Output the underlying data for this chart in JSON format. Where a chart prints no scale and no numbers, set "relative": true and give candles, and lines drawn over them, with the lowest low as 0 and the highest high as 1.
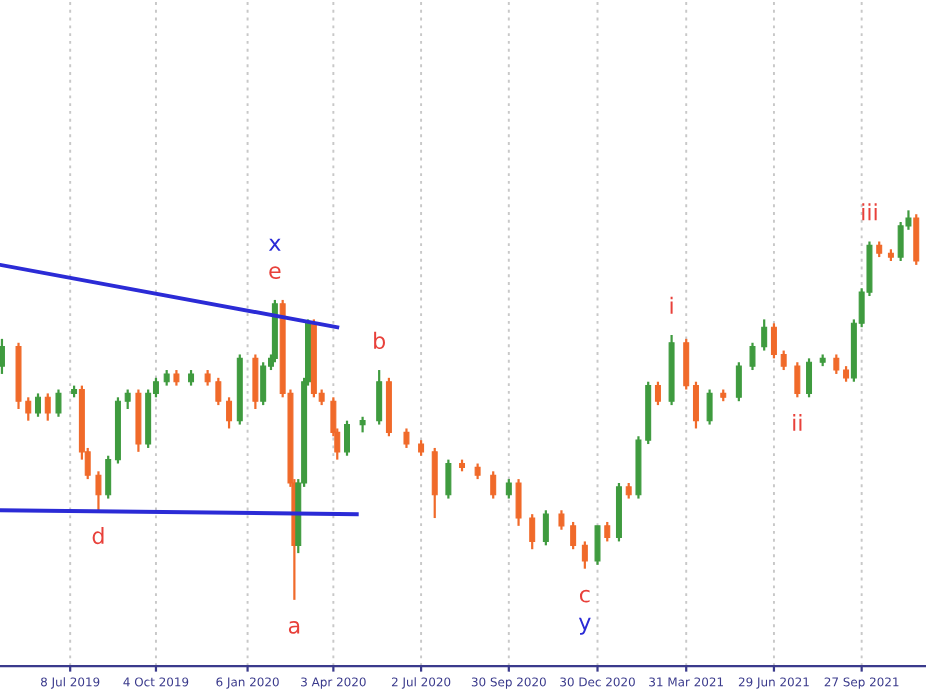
{
  "chart_data": {
    "type": "candlestick",
    "relative": true,
    "grid": true,
    "colors": [
      "#3f9b3f",
      "#f06a2a",
      "#f06a2a",
      "#3f9b3f",
      "#f06a2a",
      "#3f9b3f",
      "#3f9b3f",
      "#f06a2a",
      "#f06a2a",
      "#f06a2a",
      "#3f9b3f",
      "#3f9b3f",
      "#3f9b3f",
      "#f06a2a",
      "#3f9b3f",
      "#3f9b3f",
      "#3f9b3f",
      "#f06a2a",
      "#3f9b3f",
      "#f06a2a",
      "#f06a2a",
      "#f06a2a",
      "#3f9b3f",
      "#f06a2a",
      "#3f9b3f",
      "#3f9b3f",
      "#3f9b3f",
      "#f06a2a",
      "#f06a2a",
      "#f06a2a",
      "#3f9b3f",
      "#3f9b3f",
      "#3f9b3f",
      "#f06a2a",
      "#f06a2a",
      "#f06a2a",
      "#f06a2a",
      "#3f9b3f",
      "#3f9b3f",
      "#3f9b3f",
      "#f06a2a",
      "#f06a2a",
      "#f06a2a",
      "#f06a2a",
      "#3f9b3f",
      "#f06a2a",
      "#f06a2a",
      "#f06a2a",
      "#3f9b3f",
      "#f06a2a",
      "#f06a2a",
      "#3f9b3f",
      "#f06a2a",
      "#f06a2a",
      "#f06a2a",
      "#3f9b3f",
      "#f06a2a",
      "#3f9b3f",
      "#f06a2a",
      "#3f9b3f",
      "#3f9b3f",
      "#f06a2a",
      "#3f9b3f",
      "#f06a2a",
      "#f06a2a",
      "#3f9b3f",
      "#f06a2a",
      "#3f9b3f",
      "#3f9b3f",
      "#3f9b3f",
      "#f06a2a",
      "#f06a2a",
      "#f06a2a",
      "#3f9b3f",
      "#3f9b3f",
      "#f06a2a",
      "#f06a2a",
      "#3f9b3f",
      "#3f9b3f",
      "#3f9b3f",
      "#f06a2a",
      "#f06a2a",
      "#3f9b3f",
      "#3f9b3f",
      "#f06a2a"
    ],
    "x": [
      "2019-04-29",
      "2019-05-16",
      "2019-05-26",
      "2019-06-05",
      "2019-06-15",
      "2019-06-26",
      "2019-07-12",
      "2019-07-20",
      "2019-07-26",
      "2019-08-06",
      "2019-08-16",
      "2019-08-26",
      "2019-09-05",
      "2019-09-16",
      "2019-09-26",
      "2019-10-04",
      "2019-10-15",
      "2019-10-25",
      "2019-11-09",
      "2019-11-26",
      "2019-12-07",
      "2019-12-18",
      "2019-12-29",
      "2020-01-14",
      "2020-01-22",
      "2020-01-30",
      "2020-02-03",
      "2020-02-11",
      "2020-02-19",
      "2020-02-23",
      "2020-02-27",
      "2020-03-04",
      "2020-03-08",
      "2020-03-14",
      "2020-03-22",
      "2020-04-03",
      "2020-04-07",
      "2020-04-17",
      "2020-05-03",
      "2020-05-20",
      "2020-05-30",
      "2020-06-17",
      "2020-07-02",
      "2020-07-16",
      "2020-07-30",
      "2020-08-13",
      "2020-08-29",
      "2020-09-14",
      "2020-09-30",
      "2020-10-10",
      "2020-10-24",
      "2020-11-07",
      "2020-11-23",
      "2020-12-05",
      "2020-12-17",
      "2020-12-30",
      "2021-01-09",
      "2021-01-21",
      "2021-01-31",
      "2021-02-10",
      "2021-02-20",
      "2021-03-02",
      "2021-03-16",
      "2021-03-31",
      "2021-04-10",
      "2021-04-24",
      "2021-05-08",
      "2021-05-24",
      "2021-06-07",
      "2021-06-19",
      "2021-06-29",
      "2021-07-09",
      "2021-07-23",
      "2021-08-04",
      "2021-08-18",
      "2021-09-01",
      "2021-09-11",
      "2021-09-19",
      "2021-09-27",
      "2021-10-05",
      "2021-10-15",
      "2021-10-27",
      "2021-11-06",
      "2021-11-14",
      "2021-11-22"
    ],
    "ohlc": [
      [
        0.6,
        0.67,
        0.58,
        0.65
      ],
      [
        0.65,
        0.66,
        0.49,
        0.51
      ],
      [
        0.51,
        0.52,
        0.46,
        0.48
      ],
      [
        0.48,
        0.53,
        0.47,
        0.52
      ],
      [
        0.52,
        0.53,
        0.46,
        0.48
      ],
      [
        0.48,
        0.54,
        0.47,
        0.53
      ],
      [
        0.53,
        0.55,
        0.52,
        0.54
      ],
      [
        0.54,
        0.55,
        0.36,
        0.38
      ],
      [
        0.38,
        0.39,
        0.31,
        0.32
      ],
      [
        0.32,
        0.33,
        0.23,
        0.27
      ],
      [
        0.27,
        0.37,
        0.26,
        0.36
      ],
      [
        0.36,
        0.52,
        0.35,
        0.51
      ],
      [
        0.51,
        0.54,
        0.49,
        0.53
      ],
      [
        0.53,
        0.54,
        0.38,
        0.4
      ],
      [
        0.4,
        0.54,
        0.39,
        0.53
      ],
      [
        0.53,
        0.57,
        0.52,
        0.56
      ],
      [
        0.56,
        0.59,
        0.55,
        0.58
      ],
      [
        0.58,
        0.59,
        0.55,
        0.56
      ],
      [
        0.56,
        0.59,
        0.55,
        0.58
      ],
      [
        0.58,
        0.59,
        0.55,
        0.56
      ],
      [
        0.56,
        0.57,
        0.5,
        0.51
      ],
      [
        0.51,
        0.52,
        0.44,
        0.46
      ],
      [
        0.46,
        0.63,
        0.45,
        0.62
      ],
      [
        0.62,
        0.63,
        0.49,
        0.51
      ],
      [
        0.51,
        0.61,
        0.5,
        0.6
      ],
      [
        0.6,
        0.63,
        0.59,
        0.62
      ],
      [
        0.62,
        0.77,
        0.61,
        0.76
      ],
      [
        0.76,
        0.77,
        0.52,
        0.53
      ],
      [
        0.53,
        0.54,
        0.29,
        0.3
      ],
      [
        0.3,
        0.31,
        0,
        0.14
      ],
      [
        0.14,
        0.31,
        0.12,
        0.3
      ],
      [
        0.3,
        0.57,
        0.29,
        0.56
      ],
      [
        0.56,
        0.72,
        0.55,
        0.71
      ],
      [
        0.71,
        0.72,
        0.52,
        0.53
      ],
      [
        0.53,
        0.54,
        0.5,
        0.51
      ],
      [
        0.51,
        0.52,
        0.42,
        0.43
      ],
      [
        0.43,
        0.44,
        0.36,
        0.38
      ],
      [
        0.38,
        0.46,
        0.37,
        0.45
      ],
      [
        0.45,
        0.47,
        0.43,
        0.46
      ],
      [
        0.46,
        0.59,
        0.45,
        0.56
      ],
      [
        0.56,
        0.57,
        0.42,
        0.43
      ],
      [
        0.43,
        0.44,
        0.39,
        0.4
      ],
      [
        0.4,
        0.41,
        0.37,
        0.38
      ],
      [
        0.38,
        0.39,
        0.21,
        0.27
      ],
      [
        0.27,
        0.36,
        0.26,
        0.35
      ],
      [
        0.35,
        0.36,
        0.33,
        0.34
      ],
      [
        0.34,
        0.35,
        0.31,
        0.32
      ],
      [
        0.32,
        0.33,
        0.26,
        0.27
      ],
      [
        0.27,
        0.31,
        0.26,
        0.3
      ],
      [
        0.3,
        0.31,
        0.19,
        0.21
      ],
      [
        0.21,
        0.22,
        0.13,
        0.15
      ],
      [
        0.15,
        0.23,
        0.14,
        0.22
      ],
      [
        0.22,
        0.23,
        0.18,
        0.19
      ],
      [
        0.19,
        0.2,
        0.13,
        0.14
      ],
      [
        0.14,
        0.15,
        0.08,
        0.1
      ],
      [
        0.1,
        0.19,
        0.09,
        0.19
      ],
      [
        0.19,
        0.2,
        0.15,
        0.16
      ],
      [
        0.16,
        0.3,
        0.15,
        0.29
      ],
      [
        0.29,
        0.3,
        0.26,
        0.27
      ],
      [
        0.27,
        0.42,
        0.26,
        0.41
      ],
      [
        0.41,
        0.56,
        0.4,
        0.55
      ],
      [
        0.55,
        0.56,
        0.5,
        0.51
      ],
      [
        0.51,
        0.68,
        0.5,
        0.66
      ],
      [
        0.66,
        0.67,
        0.54,
        0.55
      ],
      [
        0.55,
        0.56,
        0.44,
        0.46
      ],
      [
        0.46,
        0.54,
        0.45,
        0.53
      ],
      [
        0.53,
        0.54,
        0.51,
        0.52
      ],
      [
        0.52,
        0.61,
        0.51,
        0.6
      ],
      [
        0.6,
        0.66,
        0.59,
        0.65
      ],
      [
        0.65,
        0.72,
        0.64,
        0.7
      ],
      [
        0.7,
        0.71,
        0.62,
        0.63
      ],
      [
        0.63,
        0.64,
        0.59,
        0.6
      ],
      [
        0.6,
        0.61,
        0.52,
        0.53
      ],
      [
        0.53,
        0.62,
        0.52,
        0.61
      ],
      [
        0.61,
        0.63,
        0.6,
        0.62
      ],
      [
        0.62,
        0.63,
        0.58,
        0.59
      ],
      [
        0.59,
        0.6,
        0.56,
        0.57
      ],
      [
        0.57,
        0.72,
        0.56,
        0.71
      ],
      [
        0.71,
        0.8,
        0.7,
        0.79
      ],
      [
        0.79,
        0.92,
        0.78,
        0.91
      ],
      [
        0.91,
        0.92,
        0.88,
        0.89
      ],
      [
        0.89,
        0.9,
        0.87,
        0.88
      ],
      [
        0.88,
        0.97,
        0.87,
        0.96
      ],
      [
        0.96,
        1,
        0.95,
        0.98
      ],
      [
        0.98,
        0.99,
        0.86,
        0.87
      ]
    ],
    "series": [
      {
        "type": "line",
        "color": "#2b2bd6",
        "x": [
          "2019-04-27",
          "2020-04-07"
        ],
        "values": [
          0.86,
          0.7
        ]
      },
      {
        "type": "line",
        "color": "#2b2bd6",
        "x": [
          "2019-04-27",
          "2020-04-27"
        ],
        "values": [
          0.23,
          0.22
        ]
      }
    ],
    "xlim": [
      "2019-04-27",
      "2021-12-02"
    ],
    "xticks": [
      {
        "value": "2019-07-08",
        "label": "8 Jul 2019"
      },
      {
        "value": "2019-10-04",
        "label": "4 Oct 2019"
      },
      {
        "value": "2020-01-06",
        "label": "6 Jan 2020"
      },
      {
        "value": "2020-04-03",
        "label": "3 Apr 2020"
      },
      {
        "value": "2020-07-02",
        "label": "2 Jul 2020"
      },
      {
        "value": "2020-09-30",
        "label": "30 Sep 2020"
      },
      {
        "value": "2020-12-30",
        "label": "30 Dec 2020"
      },
      {
        "value": "2021-03-31",
        "label": "31 Mar 2021"
      },
      {
        "value": "2021-06-29",
        "label": "29 Jun 2021"
      },
      {
        "value": "2021-09-27",
        "label": "27 Sep 2021"
      }
    ],
    "annotations": [
      {
        "text": "e",
        "x": "2020-02-03",
        "y": 0.77
      },
      {
        "text": "x",
        "x": "2020-02-03",
        "y": 0.77
      },
      {
        "text": "b",
        "x": "2020-05-20",
        "y": 0.59
      },
      {
        "text": "d",
        "x": "2019-08-06",
        "y": 0.23
      },
      {
        "text": "a",
        "x": "2020-02-23",
        "y": 0
      },
      {
        "text": "c",
        "x": "2020-12-17",
        "y": 0.08
      },
      {
        "text": "y",
        "x": "2020-12-17",
        "y": 0.08
      },
      {
        "text": "i",
        "x": "2021-03-16",
        "y": 0.68
      },
      {
        "text": "ii",
        "x": "2021-07-23",
        "y": 0.52
      },
      {
        "text": "iii",
        "x": "2021-10-05",
        "y": 0.92
      }
    ]
  }
}
